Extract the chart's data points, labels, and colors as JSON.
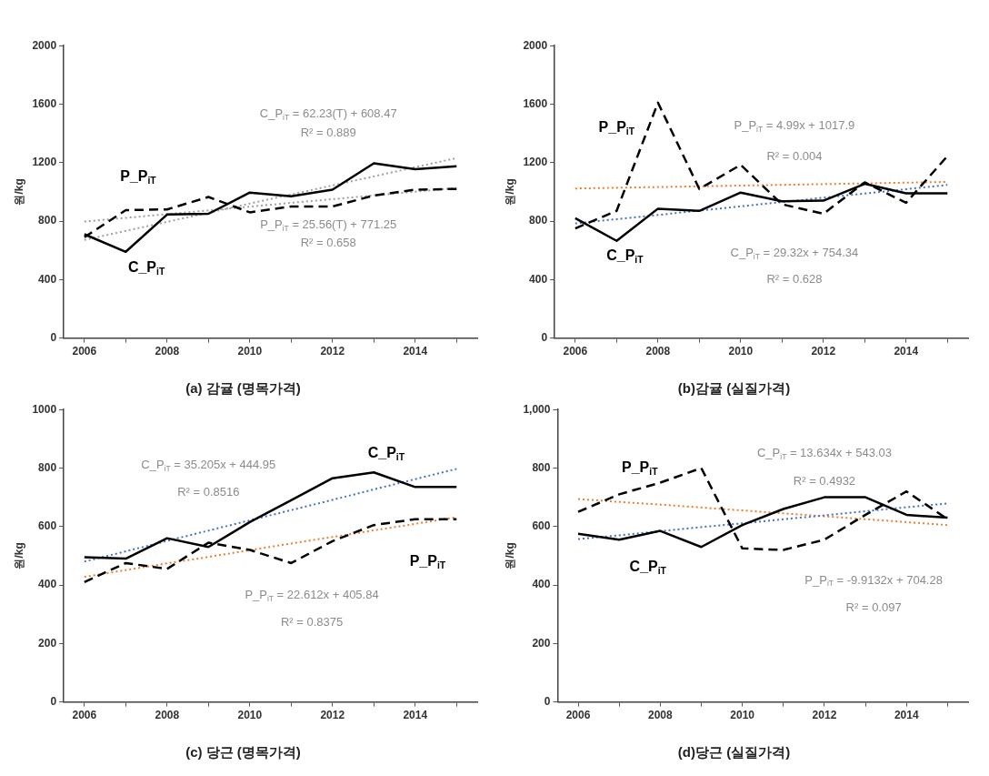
{
  "chart_data": [
    {
      "type": "line",
      "title": "(a) 감귤 (명목가격)",
      "ylabel": "원/kg",
      "x": [
        2006,
        2007,
        2008,
        2009,
        2010,
        2011,
        2012,
        2013,
        2014,
        2015
      ],
      "xlim": [
        2005.5,
        2015.5
      ],
      "xticks": [
        2006,
        {
          "value": 2007,
          "label": null
        },
        2008,
        {
          "value": 2009,
          "label": null
        },
        2010,
        {
          "value": 2011,
          "label": null
        },
        2012,
        {
          "value": 2013,
          "label": null
        },
        2014,
        {
          "value": 2015,
          "label": null
        }
      ],
      "ylim": [
        0,
        2000
      ],
      "yticks": [
        0,
        400,
        800,
        1200,
        1600,
        2000
      ],
      "grid": false,
      "legend": false,
      "marker": "none",
      "series": [
        {
          "name": "C_P$_{iT}$",
          "color": "#000000",
          "line_style": "solid",
          "values": [
            710,
            590,
            845,
            850,
            995,
            970,
            1015,
            1195,
            1155,
            1175
          ]
        },
        {
          "name": "P_P$_{iT}$",
          "color": "#000000",
          "line_style": "dashed",
          "values": [
            690,
            875,
            880,
            965,
            860,
            900,
            900,
            975,
            1015,
            1020
          ]
        },
        {
          "type": "line",
          "color": "#a0a0a0",
          "line_style": "dotted",
          "values": [
            671,
            733,
            795,
            857,
            920,
            982,
            1044,
            1106,
            1169,
            1231
          ]
        },
        {
          "type": "line",
          "color": "#a0a0a0",
          "line_style": "dotted",
          "values": [
            797,
            822,
            848,
            873,
            899,
            925,
            950,
            976,
            1001,
            1027
          ]
        }
      ],
      "annotations": [
        "C_P$_{iT}$ = 62.23(T) + 608.47",
        "R² = 0.889",
        "P_P$_{iT}$ = 25.56(T) + 771.25",
        "R² = 0.658"
      ]
    },
    {
      "type": "line",
      "title": "(b)감귤 (실질가격)",
      "ylabel": "원/kg",
      "x": [
        2006,
        2007,
        2008,
        2009,
        2010,
        2011,
        2012,
        2013,
        2014,
        2015
      ],
      "xlim": [
        2005.5,
        2015.5
      ],
      "xticks": [
        2006,
        {
          "value": 2007,
          "label": null
        },
        2008,
        {
          "value": 2009,
          "label": null
        },
        2010,
        {
          "value": 2011,
          "label": null
        },
        2012,
        {
          "value": 2013,
          "label": null
        },
        2014,
        {
          "value": 2015,
          "label": null
        }
      ],
      "ylim": [
        0,
        2000
      ],
      "yticks": [
        0,
        400,
        800,
        1200,
        1600,
        2000
      ],
      "grid": false,
      "legend": false,
      "marker": "none",
      "series": [
        {
          "name": "C_P$_{iT}$",
          "color": "#000000",
          "line_style": "solid",
          "values": [
            820,
            665,
            885,
            870,
            995,
            935,
            940,
            1055,
            990,
            990
          ]
        },
        {
          "name": "P_P$_{iT}$",
          "color": "#000000",
          "line_style": "dashed",
          "values": [
            750,
            870,
            1610,
            1020,
            1185,
            915,
            850,
            1065,
            925,
            1245
          ]
        },
        {
          "type": "line",
          "color": "#ed7d31",
          "line_style": "dotted",
          "values": [
            1023,
            1028,
            1033,
            1038,
            1043,
            1048,
            1053,
            1058,
            1063,
            1068
          ]
        },
        {
          "type": "line",
          "color": "#4472c4",
          "line_style": "dotted",
          "values": [
            784,
            813,
            842,
            872,
            901,
            930,
            960,
            989,
            1018,
            1048
          ]
        }
      ],
      "annotations": [
        "P_P$_{iT}$ = 4.99x + 1017.9",
        "R² = 0.004",
        "C_P$_{iT}$ = 29.32x + 754.34",
        "R² = 0.628"
      ]
    },
    {
      "type": "line",
      "title": "(c) 당근 (명목가격)",
      "ylabel": "원/kg",
      "x": [
        2006,
        2007,
        2008,
        2009,
        2010,
        2011,
        2012,
        2013,
        2014,
        2015
      ],
      "xlim": [
        2005.5,
        2015.5
      ],
      "xticks": [
        2006,
        {
          "value": 2007,
          "label": null
        },
        2008,
        {
          "value": 2009,
          "label": null
        },
        2010,
        {
          "value": 2011,
          "label": null
        },
        2012,
        {
          "value": 2013,
          "label": null
        },
        2014,
        {
          "value": 2015,
          "label": null
        }
      ],
      "ylim": [
        0,
        1000
      ],
      "yticks": [
        0,
        200,
        400,
        600,
        800,
        1000
      ],
      "grid": false,
      "legend": false,
      "marker": "none",
      "series": [
        {
          "name": "C_P$_{iT}$",
          "color": "#000000",
          "line_style": "solid",
          "values": [
            495,
            490,
            560,
            530,
            615,
            690,
            765,
            785,
            735,
            735
          ]
        },
        {
          "name": "P_P$_{iT}$",
          "color": "#000000",
          "line_style": "dashed",
          "values": [
            410,
            475,
            455,
            545,
            520,
            475,
            550,
            605,
            625,
            625
          ]
        },
        {
          "type": "line",
          "color": "#4472c4",
          "line_style": "dotted",
          "values": [
            480,
            515,
            551,
            586,
            621,
            656,
            691,
            727,
            762,
            797
          ]
        },
        {
          "type": "line",
          "color": "#ed7d31",
          "line_style": "dotted",
          "values": [
            428,
            451,
            474,
            496,
            519,
            542,
            564,
            587,
            609,
            632
          ]
        }
      ],
      "annotations": [
        "C_P$_{iT}$ = 35.205x + 444.95",
        "R² = 0.8516",
        "P_P$_{iT}$ = 22.612x + 405.84",
        "R² = 0.8375"
      ]
    },
    {
      "type": "line",
      "title": "(d)당근 (실질가격)",
      "ylabel": "원/kg",
      "x": [
        2006,
        2007,
        2008,
        2009,
        2010,
        2011,
        2012,
        2013,
        2014,
        2015
      ],
      "xlim": [
        2005.5,
        2015.5
      ],
      "xticks": [
        2006,
        {
          "value": 2007,
          "label": null
        },
        2008,
        {
          "value": 2009,
          "label": null
        },
        2010,
        {
          "value": 2011,
          "label": null
        },
        2012,
        {
          "value": 2013,
          "label": null
        },
        2014,
        {
          "value": 2015,
          "label": null
        }
      ],
      "ylim": [
        0,
        1000
      ],
      "yticks": [
        0,
        200,
        400,
        600,
        800,
        {
          "value": 1000,
          "label": "1,000"
        }
      ],
      "grid": false,
      "legend": false,
      "marker": "none",
      "series": [
        {
          "name": "C_P$_{iT}$",
          "color": "#000000",
          "line_style": "solid",
          "values": [
            575,
            555,
            585,
            530,
            605,
            660,
            700,
            700,
            640,
            630
          ]
        },
        {
          "name": "P_P$_{iT}$",
          "color": "#000000",
          "line_style": "dashed",
          "values": [
            650,
            710,
            750,
            800,
            525,
            520,
            555,
            640,
            720,
            625
          ]
        },
        {
          "type": "line",
          "color": "#4472c4",
          "line_style": "dotted",
          "values": [
            557,
            570,
            584,
            598,
            611,
            625,
            638,
            652,
            666,
            679
          ]
        },
        {
          "type": "line",
          "color": "#ed7d31",
          "line_style": "dotted",
          "values": [
            694,
            684,
            675,
            665,
            655,
            645,
            635,
            625,
            615,
            605
          ]
        }
      ],
      "annotations": [
        "C_P$_{iT}$ = 13.634x + 543.03",
        "R² = 0.4932",
        "P_P$_{iT}$ = -9.9132x + 704.28",
        "R² = 0.097"
      ]
    }
  ]
}
